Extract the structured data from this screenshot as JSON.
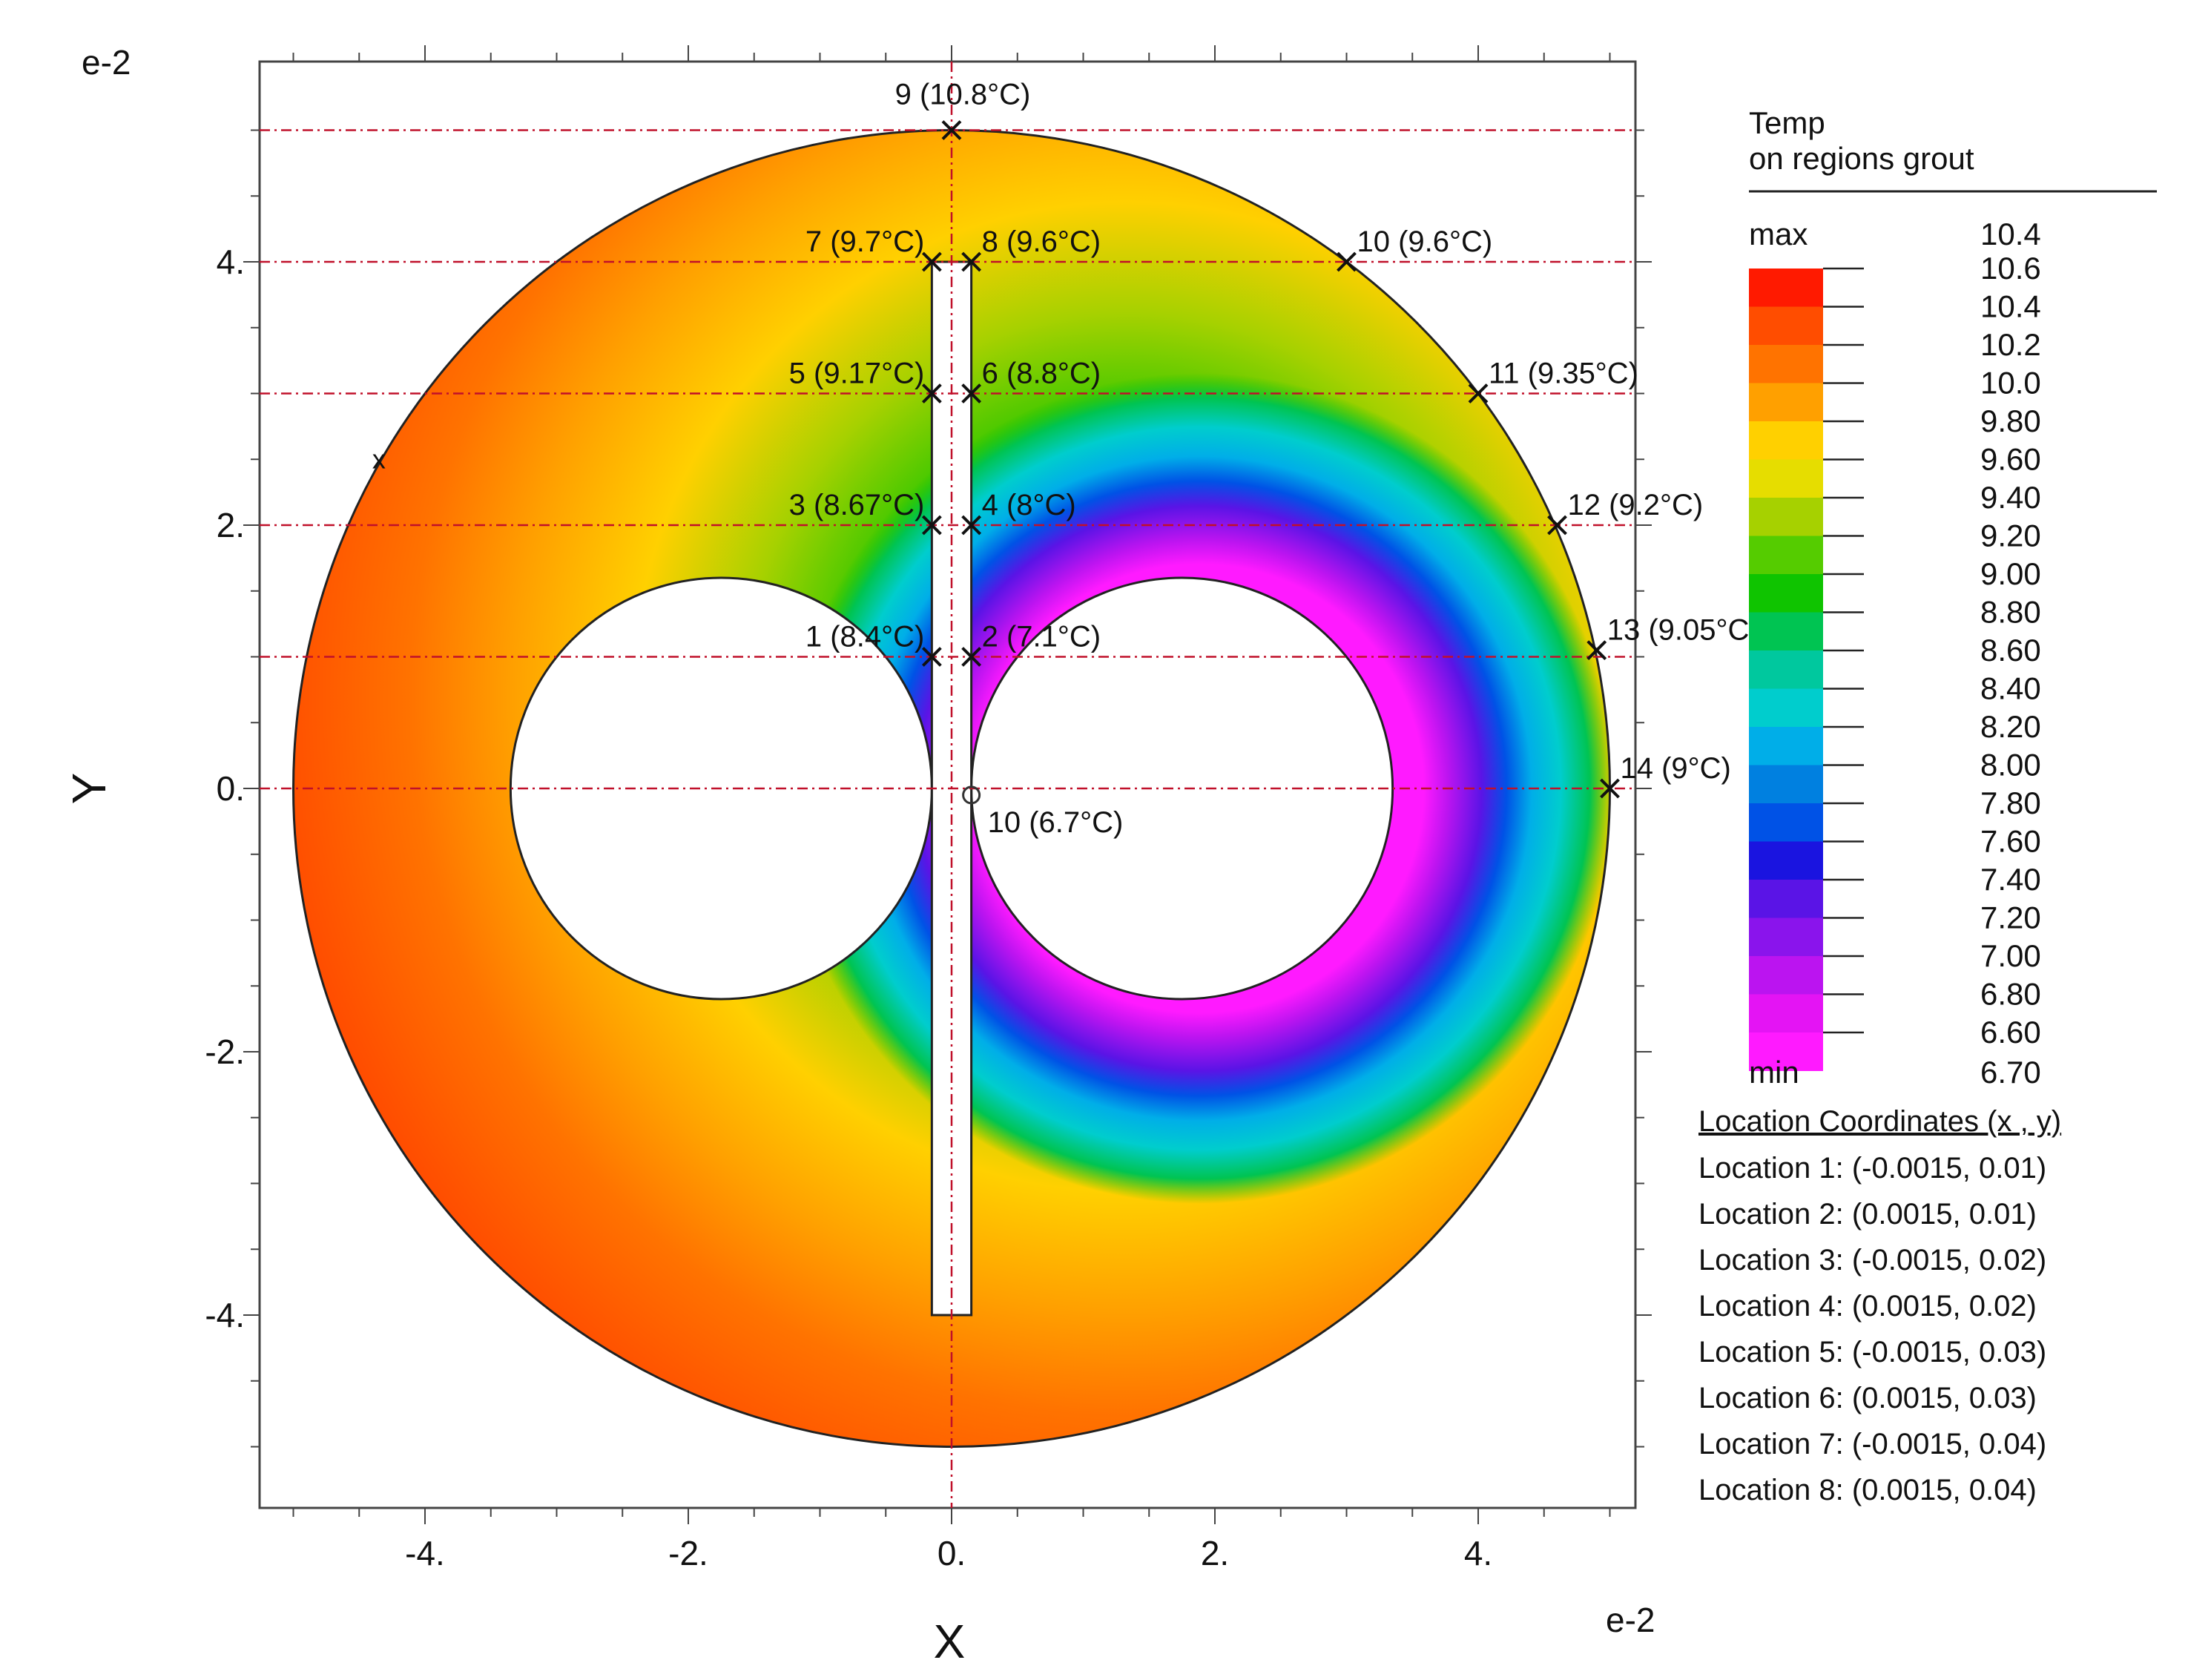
{
  "chart_data": {
    "type": "contour",
    "title": "",
    "xlabel": "X",
    "ylabel": "Y",
    "x_exponent_label": "e-2",
    "y_exponent_label": "e-2",
    "xlim": [
      -5.5,
      5.5
    ],
    "ylim": [
      -5.5,
      5.5
    ],
    "x_ticks": [
      -4,
      -2,
      0,
      2,
      4
    ],
    "y_ticks": [
      -4,
      -2,
      0,
      2,
      4
    ],
    "x_tick_labels": [
      "-4.",
      "-2.",
      "0.",
      "2.",
      "4."
    ],
    "y_tick_labels": [
      "-4.",
      "-2.",
      "0.",
      "2.",
      "4."
    ],
    "grid": false,
    "geometry": {
      "borehole": {
        "cx": 0,
        "cy": 0,
        "r": 5.0
      },
      "pipe_left": {
        "cx": -1.75,
        "cy": 0,
        "r": 1.6
      },
      "pipe_right": {
        "cx": 1.75,
        "cy": 0,
        "r": 1.6
      },
      "divider": {
        "x0": -0.15,
        "x1": 0.15,
        "y0": -4.0,
        "y1": 4.0
      }
    },
    "reference_lines_y": [
      5,
      4,
      3,
      2,
      1,
      0
    ],
    "reference_line_x": 0,
    "points": [
      {
        "label": "1 (8.4°C)",
        "x": -0.15,
        "y": 1,
        "anchor": "left"
      },
      {
        "label": "2 (7.1°C)",
        "x": 0.15,
        "y": 1,
        "anchor": "right"
      },
      {
        "label": "3 (8.67°C)",
        "x": -0.15,
        "y": 2,
        "anchor": "left"
      },
      {
        "label": "4 (8°C)",
        "x": 0.15,
        "y": 2,
        "anchor": "right"
      },
      {
        "label": "5 (9.17°C)",
        "x": -0.15,
        "y": 3,
        "anchor": "left"
      },
      {
        "label": "6 (8.8°C)",
        "x": 0.15,
        "y": 3,
        "anchor": "right"
      },
      {
        "label": "7 (9.7°C)",
        "x": -0.15,
        "y": 4,
        "anchor": "left"
      },
      {
        "label": "8 (9.6°C)",
        "x": 0.15,
        "y": 4,
        "anchor": "right"
      },
      {
        "label": "9 (10.8°C)",
        "x": 0,
        "y": 5,
        "anchor": "top"
      },
      {
        "label": "10 (9.6°C)",
        "x": 3.0,
        "y": 4,
        "anchor": "right"
      },
      {
        "label": "11 (9.35°C)",
        "x": 4.0,
        "y": 3,
        "anchor": "right"
      },
      {
        "label": "12 (9.2°C)",
        "x": 4.6,
        "y": 2,
        "anchor": "right"
      },
      {
        "label": "13 (9.05°C)",
        "x": 4.9,
        "y": 1.05,
        "anchor": "right"
      },
      {
        "label": "14 (9°C)",
        "x": 5.0,
        "y": 0,
        "anchor": "right"
      },
      {
        "label": "10 (6.7°C)",
        "x": 0.15,
        "y": -0.05,
        "anchor": "below",
        "marker": "circle"
      }
    ],
    "extra_marker": {
      "label": "x",
      "x": -4.35,
      "y": 2.5
    },
    "legend": {
      "title_line1": "Temp",
      "title_line2": "on regions grout",
      "max_label": "max",
      "max_value": "10.4",
      "min_label": "min",
      "min_value": "6.70",
      "levels": [
        "10.6",
        "10.4",
        "10.2",
        "10.0",
        "9.80",
        "9.60",
        "9.40",
        "9.20",
        "9.00",
        "8.80",
        "8.60",
        "8.40",
        "8.20",
        "8.00",
        "7.80",
        "7.60",
        "7.40",
        "7.20",
        "7.00",
        "6.80",
        "6.60"
      ],
      "colors": [
        "#ff1a00",
        "#ff4d00",
        "#ff7300",
        "#ffa000",
        "#ffd000",
        "#e6dd00",
        "#a6d100",
        "#55cc00",
        "#0fc400",
        "#00c452",
        "#00c89e",
        "#00cdcd",
        "#00aee8",
        "#0080e0",
        "#0052e6",
        "#1a14e0",
        "#5a14e6",
        "#8a14ec",
        "#bb14f0",
        "#e414f4",
        "#ff1aff"
      ]
    },
    "locations": {
      "header": "Location Coordinates (x , y)",
      "items": [
        "Location 1: (-0.0015, 0.01)",
        "Location 2: (0.0015, 0.01)",
        "Location 3: (-0.0015, 0.02)",
        "Location 4: (0.0015, 0.02)",
        "Location 5: (-0.0015, 0.03)",
        "Location 6: (0.0015, 0.03)",
        "Location 7: (-0.0015, 0.04)",
        "Location 8: (0.0015, 0.04)"
      ]
    }
  }
}
